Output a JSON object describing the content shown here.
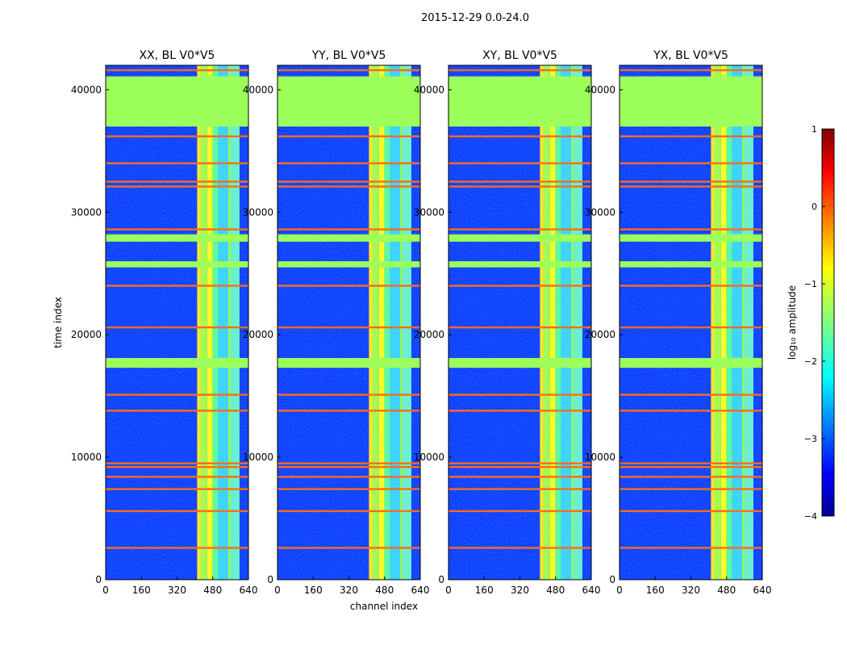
{
  "figure": {
    "suptitle": "2015-12-29 0.0-24.0",
    "xlabel": "channel index",
    "ylabel": "time index"
  },
  "colors": {
    "flag_fill": "#9cff5a",
    "flag_line": "#ff6b18",
    "background_jet": "#0b3cff"
  },
  "chart_data": [
    {
      "type": "heatmap",
      "title": "XX, BL V0*V5",
      "xlabel": "channel index",
      "ylabel": "time index",
      "xlim": [
        0,
        640
      ],
      "ylim": [
        0,
        42000
      ],
      "xticks": [
        0,
        160,
        320,
        480,
        640
      ],
      "yticks": [
        0,
        10000,
        20000,
        30000,
        40000
      ],
      "bright_channel_band": [
        410,
        600
      ],
      "flagged_time_blocks": [
        [
          37000,
          41100
        ],
        [
          27600,
          28200
        ],
        [
          25500,
          26000
        ],
        [
          17300,
          18100
        ]
      ],
      "flagged_time_lines": [
        41600,
        36200,
        34000,
        32500,
        32100,
        28600,
        24000,
        20600,
        15100,
        13800,
        9500,
        9200,
        8400,
        7400,
        5600,
        2600
      ]
    },
    {
      "type": "heatmap",
      "title": "YY, BL V0*V5",
      "xlabel": "channel index",
      "ylabel": "time index",
      "xlim": [
        0,
        640
      ],
      "ylim": [
        0,
        42000
      ],
      "xticks": [
        0,
        160,
        320,
        480,
        640
      ],
      "yticks": [
        0,
        10000,
        20000,
        30000,
        40000
      ],
      "bright_channel_band": [
        410,
        600
      ],
      "flagged_time_blocks": [
        [
          37000,
          41100
        ],
        [
          27600,
          28200
        ],
        [
          25500,
          26000
        ],
        [
          17300,
          18100
        ]
      ],
      "flagged_time_lines": [
        41600,
        36200,
        34000,
        32500,
        32100,
        28600,
        24000,
        20600,
        15100,
        13800,
        9500,
        9200,
        8400,
        7400,
        5600,
        2600
      ]
    },
    {
      "type": "heatmap",
      "title": "XY, BL V0*V5",
      "xlabel": "channel index",
      "ylabel": "time index",
      "xlim": [
        0,
        640
      ],
      "ylim": [
        0,
        42000
      ],
      "xticks": [
        0,
        160,
        320,
        480,
        640
      ],
      "yticks": [
        0,
        10000,
        20000,
        30000,
        40000
      ],
      "bright_channel_band": [
        410,
        600
      ],
      "flagged_time_blocks": [
        [
          37000,
          41100
        ],
        [
          27600,
          28200
        ],
        [
          25500,
          26000
        ],
        [
          17300,
          18100
        ]
      ],
      "flagged_time_lines": [
        41600,
        36200,
        34000,
        32500,
        32100,
        28600,
        24000,
        20600,
        15100,
        13800,
        9500,
        9200,
        8400,
        7400,
        5600,
        2600
      ]
    },
    {
      "type": "heatmap",
      "title": "YX, BL V0*V5",
      "xlabel": "channel index",
      "ylabel": "time index",
      "xlim": [
        0,
        640
      ],
      "ylim": [
        0,
        42000
      ],
      "xticks": [
        0,
        160,
        320,
        480,
        640
      ],
      "yticks": [
        0,
        10000,
        20000,
        30000,
        40000
      ],
      "bright_channel_band": [
        410,
        600
      ],
      "flagged_time_blocks": [
        [
          37000,
          41100
        ],
        [
          27600,
          28200
        ],
        [
          25500,
          26000
        ],
        [
          17300,
          18100
        ]
      ],
      "flagged_time_lines": [
        41600,
        36200,
        34000,
        32500,
        32100,
        28600,
        24000,
        20600,
        15100,
        13800,
        9500,
        9200,
        8400,
        7400,
        5600,
        2600
      ]
    }
  ],
  "colorbar": {
    "label": "log₁₀ amplitude",
    "min": -4,
    "max": 1,
    "ticks": [
      1,
      0,
      -1,
      -2,
      -3,
      -4
    ],
    "tick_labels": [
      "1",
      "0",
      "−1",
      "−2",
      "−3",
      "−4"
    ]
  }
}
